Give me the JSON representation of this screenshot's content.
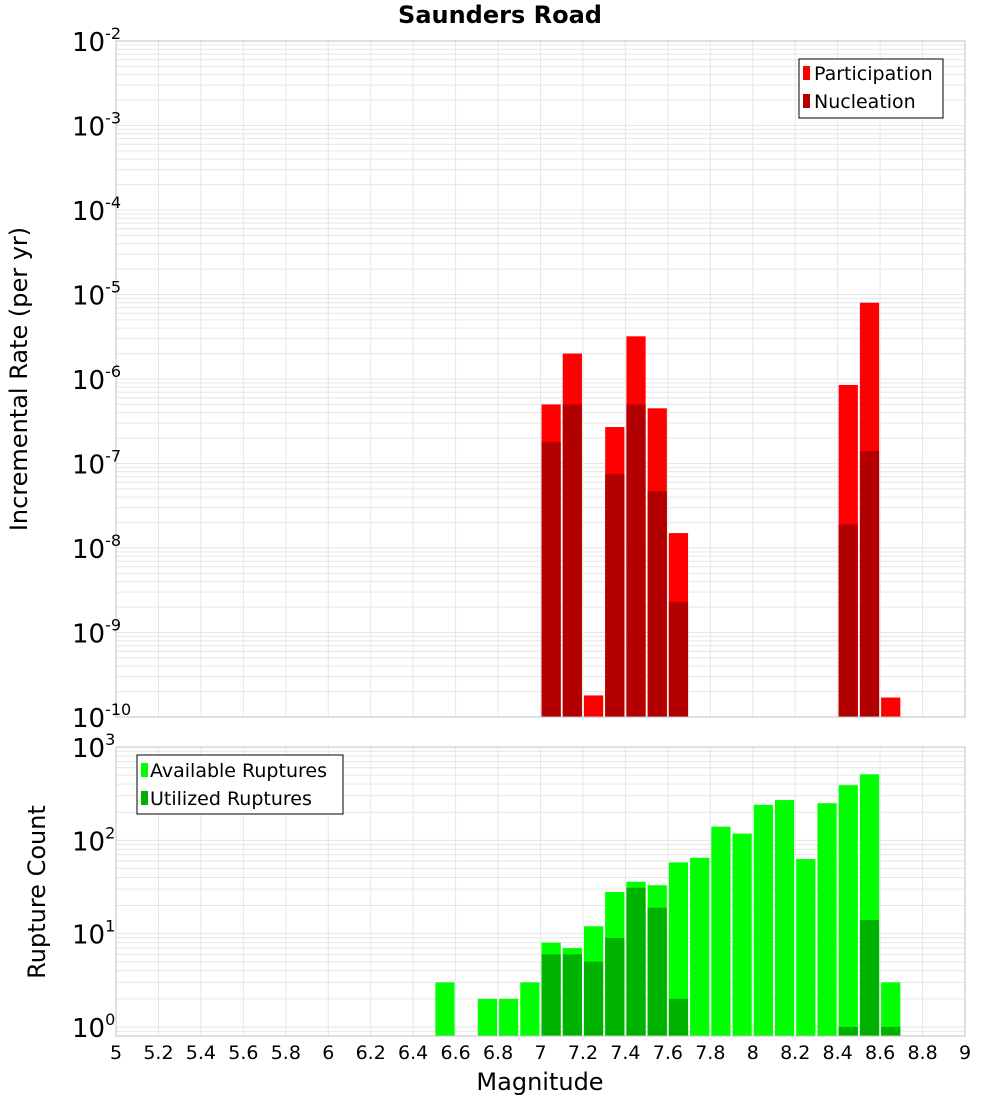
{
  "title": "Saunders Road",
  "xlabel": "Magnitude",
  "x_ticks": [
    "5",
    "5.2",
    "5.4",
    "5.6",
    "5.8",
    "6",
    "6.2",
    "6.4",
    "6.6",
    "6.8",
    "7",
    "7.2",
    "7.4",
    "7.6",
    "7.8",
    "8",
    "8.2",
    "8.4",
    "8.6",
    "8.8",
    "9"
  ],
  "colors": {
    "participation": "#ff0000",
    "nucleation": "#b20000",
    "available": "#00ff00",
    "utilized": "#00b200",
    "grid": "#e6e6e6",
    "frame": "#c0c0c0"
  },
  "chart_data": [
    {
      "type": "bar",
      "subtype": "overlaid",
      "scale": "log",
      "ylabel": "Incremental Rate (per yr)",
      "ylim": [
        1e-10,
        0.01
      ],
      "xlim": [
        5,
        9
      ],
      "bin_width": 0.1,
      "y_ticks": [
        {
          "base": "10",
          "exp": "-2"
        },
        {
          "base": "10",
          "exp": "-3"
        },
        {
          "base": "10",
          "exp": "-4"
        },
        {
          "base": "10",
          "exp": "-5"
        },
        {
          "base": "10",
          "exp": "-6"
        },
        {
          "base": "10",
          "exp": "-7"
        },
        {
          "base": "10",
          "exp": "-8"
        },
        {
          "base": "10",
          "exp": "-9"
        },
        {
          "base": "10",
          "exp": "-10"
        }
      ],
      "legend": {
        "position": "top-right",
        "entries": [
          "Participation",
          "Nucleation"
        ]
      },
      "series": [
        {
          "name": "Participation",
          "x": [
            7.05,
            7.15,
            7.25,
            7.35,
            7.45,
            7.55,
            7.65,
            8.45,
            8.55,
            8.65
          ],
          "values": [
            5e-07,
            2e-06,
            1.8e-10,
            2.7e-07,
            3.2e-06,
            4.5e-07,
            1.5e-08,
            8.5e-07,
            8e-06,
            1.7e-10
          ]
        },
        {
          "name": "Nucleation",
          "x": [
            7.05,
            7.15,
            7.35,
            7.45,
            7.55,
            7.65,
            8.45,
            8.55
          ],
          "values": [
            1.8e-07,
            5e-07,
            7.5e-08,
            5e-07,
            4.7e-08,
            2.3e-09,
            1.9e-08,
            1.4e-07
          ]
        }
      ]
    },
    {
      "type": "bar",
      "subtype": "overlaid",
      "scale": "log",
      "ylabel": "Rupture Count",
      "ylim": [
        0.8,
        1000
      ],
      "xlim": [
        5,
        9
      ],
      "bin_width": 0.1,
      "y_ticks": [
        {
          "base": "10",
          "exp": "3"
        },
        {
          "base": "10",
          "exp": "2"
        },
        {
          "base": "10",
          "exp": "1"
        },
        {
          "base": "10",
          "exp": "0"
        }
      ],
      "legend": {
        "position": "top-left",
        "entries": [
          "Available Ruptures",
          "Utilized Ruptures"
        ]
      },
      "series": [
        {
          "name": "Available Ruptures",
          "x": [
            6.55,
            6.75,
            6.85,
            6.95,
            7.05,
            7.15,
            7.25,
            7.35,
            7.45,
            7.55,
            7.65,
            7.75,
            7.85,
            7.95,
            8.05,
            8.15,
            8.25,
            8.35,
            8.45,
            8.55,
            8.65
          ],
          "values": [
            3,
            2,
            2,
            3,
            8,
            7,
            12,
            28,
            36,
            33,
            58,
            65,
            140,
            118,
            240,
            270,
            63,
            250,
            390,
            510,
            3
          ]
        },
        {
          "name": "Utilized Ruptures",
          "x": [
            7.05,
            7.15,
            7.25,
            7.35,
            7.45,
            7.55,
            7.65,
            8.45,
            8.55,
            8.65
          ],
          "values": [
            6,
            6,
            5,
            9,
            31,
            19,
            2,
            1,
            14,
            1
          ]
        }
      ]
    }
  ]
}
